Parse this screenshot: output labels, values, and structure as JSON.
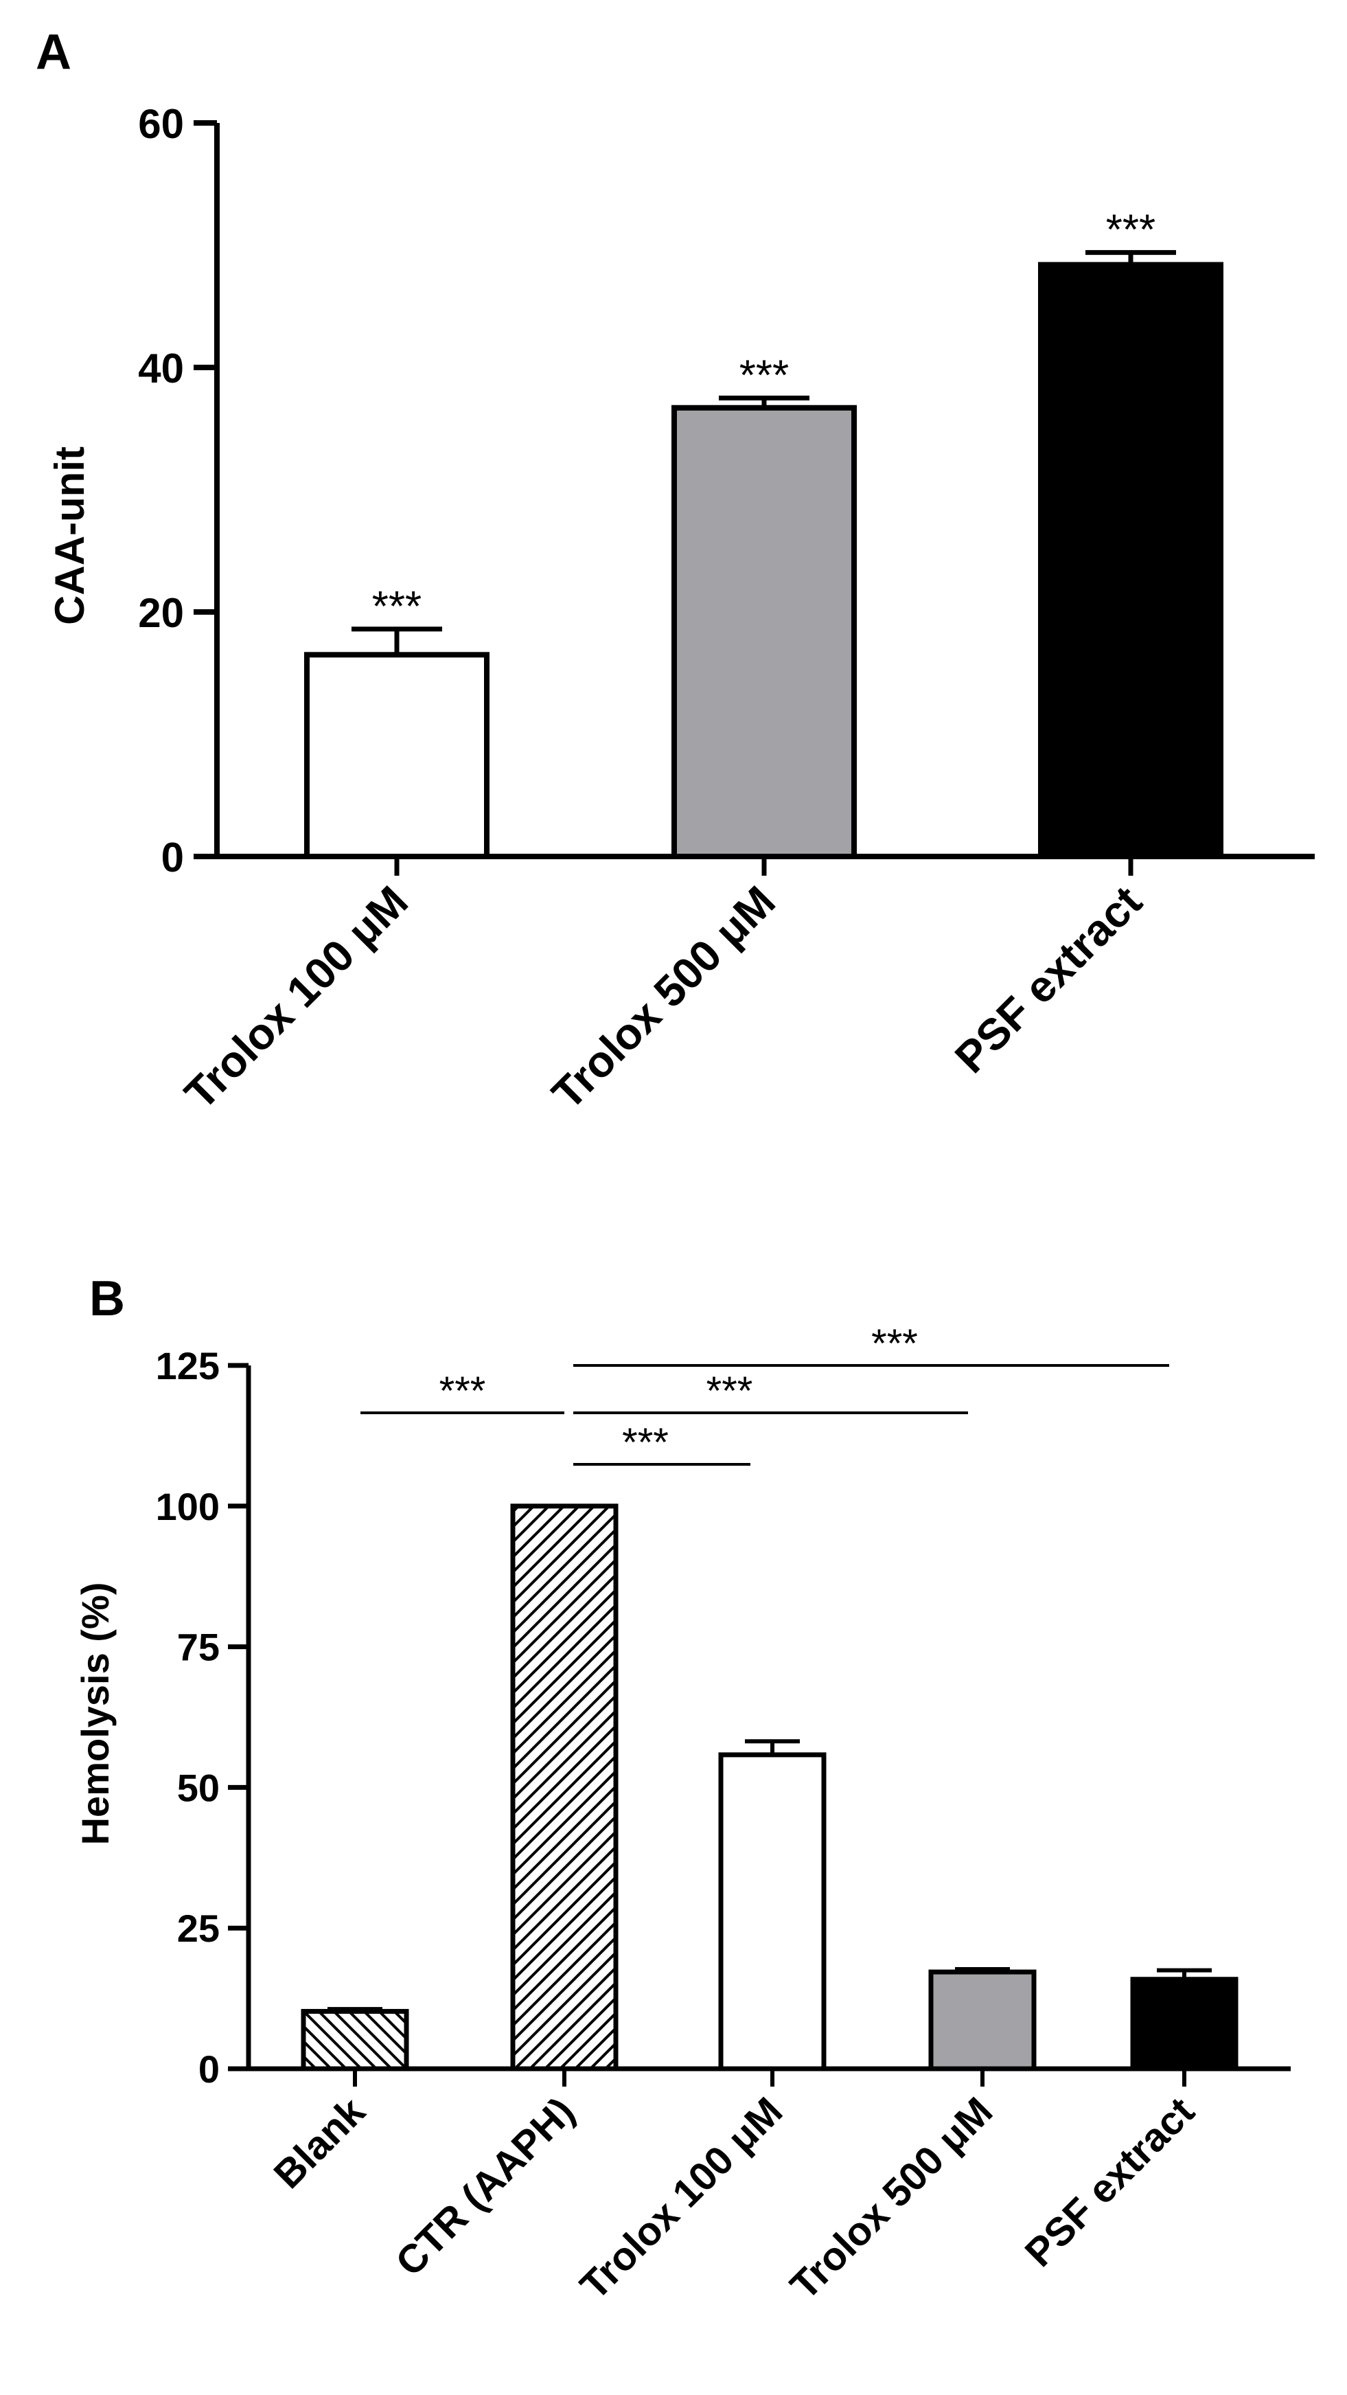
{
  "chart_data": [
    {
      "panel_label": "A",
      "type": "bar",
      "title": "",
      "xlabel": "",
      "ylabel": "CAA-unit",
      "ylim": [
        0,
        60
      ],
      "yticks": [
        0,
        20,
        40,
        60
      ],
      "grid": false,
      "categories": [
        "Trolox 100 μM",
        "Trolox 500 μM",
        "PSF extract"
      ],
      "values": [
        16.5,
        36.7,
        48.4
      ],
      "errors": [
        2.1,
        0.8,
        1.0
      ],
      "significance": [
        "***",
        "***",
        "***"
      ],
      "colors": [
        "#ffffff",
        "#a3a2a7",
        "#000000"
      ]
    },
    {
      "panel_label": "B",
      "type": "bar",
      "title": "",
      "xlabel": "",
      "ylabel": "Hemolysis (%)",
      "ylim": [
        0,
        125
      ],
      "yticks": [
        0,
        25,
        50,
        75,
        100,
        125
      ],
      "grid": false,
      "categories": [
        "Blank",
        "CTR (AAPH)",
        "Trolox 100 μM",
        "Trolox 500 μM",
        "PSF extract"
      ],
      "values": [
        10.2,
        100,
        55.8,
        17.2,
        15.9
      ],
      "errors": [
        0.4,
        0.0,
        2.4,
        0.5,
        1.6
      ],
      "fills": [
        "hatch-back",
        "hatch-forward",
        "#ffffff",
        "#a3a2a7",
        "#000000"
      ],
      "comparisons": [
        {
          "from": "Blank",
          "to": "CTR (AAPH)",
          "label": "***"
        },
        {
          "from": "CTR (AAPH)",
          "to": "Trolox 100 μM",
          "label": "***"
        },
        {
          "from": "CTR (AAPH)",
          "to": "Trolox 500 μM",
          "label": "***"
        },
        {
          "from": "CTR (AAPH)",
          "to": "PSF extract",
          "label": "***"
        }
      ]
    }
  ]
}
